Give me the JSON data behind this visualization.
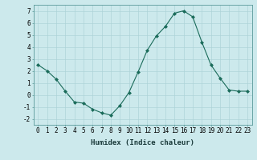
{
  "x": [
    0,
    1,
    2,
    3,
    4,
    5,
    6,
    7,
    8,
    9,
    10,
    11,
    12,
    13,
    14,
    15,
    16,
    17,
    18,
    19,
    20,
    21,
    22,
    23
  ],
  "y": [
    2.5,
    2.0,
    1.3,
    0.3,
    -0.6,
    -0.7,
    -1.2,
    -1.5,
    -1.7,
    -0.9,
    0.2,
    1.9,
    3.7,
    4.9,
    5.7,
    6.8,
    7.0,
    6.5,
    4.4,
    2.5,
    1.4,
    0.4,
    0.3,
    0.3
  ],
  "line_color": "#1a6b5a",
  "marker": "D",
  "marker_size": 2.0,
  "bg_color": "#cce9ec",
  "grid_color": "#aed4d8",
  "xlabel": "Humidex (Indice chaleur)",
  "xlim": [
    -0.5,
    23.5
  ],
  "ylim": [
    -2.5,
    7.5
  ],
  "yticks": [
    -2,
    -1,
    0,
    1,
    2,
    3,
    4,
    5,
    6,
    7
  ],
  "xticks": [
    0,
    1,
    2,
    3,
    4,
    5,
    6,
    7,
    8,
    9,
    10,
    11,
    12,
    13,
    14,
    15,
    16,
    17,
    18,
    19,
    20,
    21,
    22,
    23
  ],
  "xlabel_fontsize": 6.5,
  "tick_fontsize": 5.5,
  "linewidth": 0.8
}
